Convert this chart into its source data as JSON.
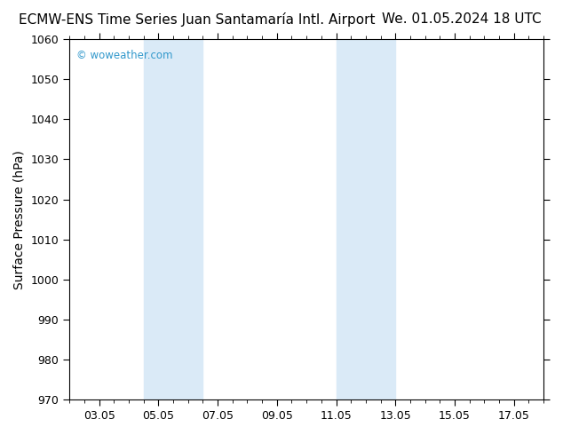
{
  "title_left": "ECMW-ENS Time Series Juan Santamaría Intl. Airport",
  "title_right": "We. 01.05.2024 18 UTC",
  "ylabel": "Surface Pressure (hPa)",
  "watermark": "© woweather.com",
  "watermark_color": "#3399cc",
  "ylim": [
    970,
    1060
  ],
  "yticks": [
    970,
    980,
    990,
    1000,
    1010,
    1020,
    1030,
    1040,
    1050,
    1060
  ],
  "xtick_labels": [
    "03.05",
    "05.05",
    "07.05",
    "09.05",
    "11.05",
    "13.05",
    "15.05",
    "17.05"
  ],
  "xtick_positions": [
    3,
    5,
    7,
    9,
    11,
    13,
    15,
    17
  ],
  "xlim": [
    2.0,
    18.0
  ],
  "shaded_bands": [
    {
      "x_start": 4.5,
      "x_end": 5.5
    },
    {
      "x_start": 5.5,
      "x_end": 6.5
    },
    {
      "x_start": 11.0,
      "x_end": 12.0
    },
    {
      "x_start": 12.0,
      "x_end": 13.0
    }
  ],
  "shade_color": "#daeaf7",
  "bg_color": "#ffffff",
  "title_fontsize": 11,
  "tick_fontsize": 9,
  "ylabel_fontsize": 10
}
